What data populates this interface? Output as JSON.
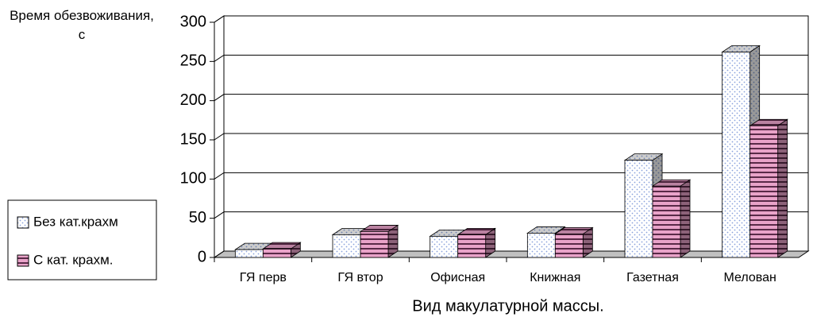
{
  "chart_data": {
    "type": "bar3d",
    "y_title": "Время обезвоживания, с",
    "x_title": "Вид макулатурной массы.",
    "categories": [
      "ГЯ перв",
      "ГЯ втор",
      "Офисная",
      "Книжная",
      "Газетная",
      "Мелован"
    ],
    "series": [
      {
        "name": "Без кат.крахм",
        "color": "#ffffff",
        "pattern_color": "#8aa2dc",
        "values": [
          10,
          29,
          27,
          31,
          124,
          262
        ]
      },
      {
        "name": "С кат. крахм.",
        "color": "#e9a3c9",
        "pattern_color": "#5a2a48",
        "values": [
          11,
          33,
          29,
          30,
          91,
          168
        ]
      }
    ],
    "ylim": [
      0,
      300
    ],
    "yticks": [
      0,
      50,
      100,
      150,
      200,
      250,
      300
    ],
    "grid": true,
    "legend": "left"
  }
}
